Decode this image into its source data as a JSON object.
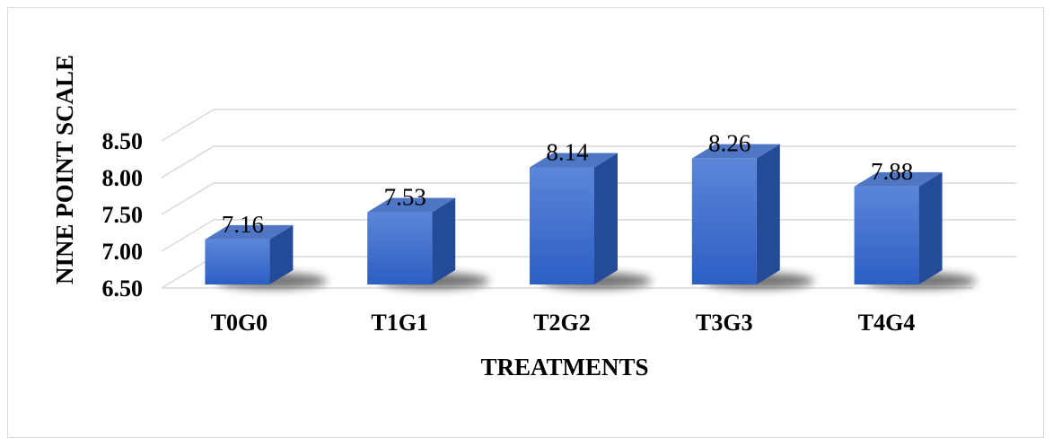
{
  "chart_data": {
    "type": "bar",
    "style": "3d-column",
    "categories": [
      "T0G0",
      "T1G1",
      "T2G2",
      "T3G3",
      "T4G4"
    ],
    "values": [
      7.16,
      7.53,
      8.14,
      8.26,
      7.88
    ],
    "data_labels": [
      "7.16",
      "7.53",
      "8.14",
      "8.26",
      "7.88"
    ],
    "yticks": [
      "6.50",
      "7.00",
      "7.50",
      "8.00",
      "8.50"
    ],
    "ylim": [
      6.5,
      8.5
    ],
    "xlabel": "TREATMENTS",
    "ylabel": "NINE POINT SCALE",
    "grid": true,
    "legend": "none",
    "colors": {
      "bar_front_top": "#5b86d8",
      "bar_front_bottom": "#2c5ec4",
      "bar_side": "#244a9a",
      "bar_top": "#4f76c4",
      "gridline": "#d9d9d9",
      "shadow": "#000000"
    }
  }
}
